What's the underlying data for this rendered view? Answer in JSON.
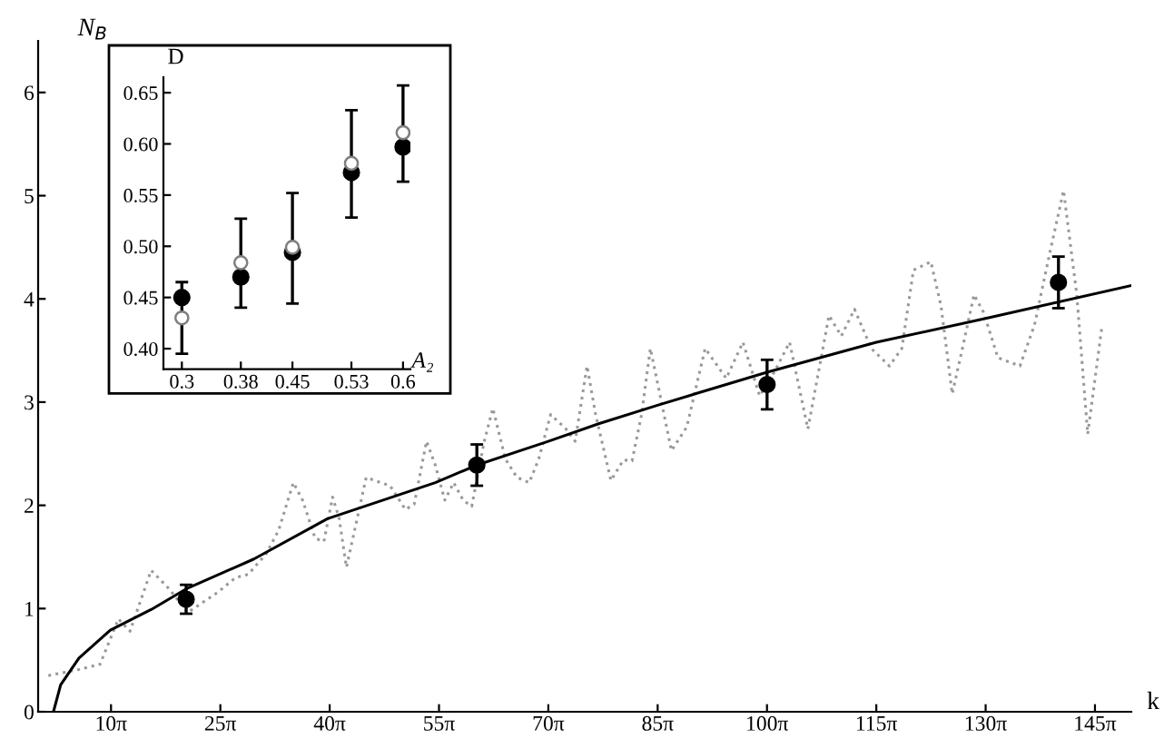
{
  "chart_data": [
    {
      "type": "line",
      "xlabel": "k",
      "ylabel": "N$_{B}$",
      "xlim": [
        0,
        471.2
      ],
      "ylim": [
        0,
        6.5
      ],
      "xticks": [
        {
          "value": 31.416,
          "label": "10π"
        },
        {
          "value": 78.54,
          "label": "25π"
        },
        {
          "value": 125.664,
          "label": "40π"
        },
        {
          "value": 172.788,
          "label": "55π"
        },
        {
          "value": 219.911,
          "label": "70π"
        },
        {
          "value": 267.035,
          "label": "85π"
        },
        {
          "value": 314.159,
          "label": "100π"
        },
        {
          "value": 361.283,
          "label": "115π"
        },
        {
          "value": 408.407,
          "label": "130π"
        },
        {
          "value": 455.531,
          "label": "145π"
        }
      ],
      "yticks": [
        0,
        1,
        2,
        3,
        4,
        5,
        6
      ],
      "series": [
        {
          "color": "#999999",
          "line_style": "dotted",
          "x": [
            4.4,
            17.6,
            26.7,
            34.6,
            39.6,
            48.7,
            56.5,
            64.4,
            69.7,
            77.6,
            85.1,
            90.5,
            98.3,
            103.7,
            110.0,
            114.0,
            119.4,
            123.2,
            126.9,
            129.7,
            132.9,
            137.6,
            141.4,
            146.4,
            151.7,
            158.3,
            162.1,
            167.4,
            171.2,
            175.3,
            179.1,
            183.2,
            186.9,
            192.3,
            196.0,
            201.4,
            206.4,
            211.7,
            215.8,
            220.9,
            227.5,
            231.5,
            236.6,
            240.3,
            246.9,
            252.3,
            256.0,
            260.1,
            263.9,
            273.0,
            279.6,
            287.5,
            296.6,
            303.8,
            311.0,
            317.3,
            323.9,
            331.8,
            340.9,
            346.2,
            351.9,
            359.1,
            366.9,
            372.3,
            377.3,
            384.8,
            389.2,
            394.0,
            398.4,
            403.4,
            407.5,
            413.7,
            423.2,
            429.5,
            436.1,
            442.0,
            447.7,
            452.4,
            458.4
          ],
          "values": [
            0.35,
            0.41,
            0.46,
            0.9,
            0.78,
            1.37,
            1.19,
            0.96,
            1.04,
            1.16,
            1.3,
            1.33,
            1.53,
            1.76,
            2.22,
            2.05,
            1.68,
            1.65,
            2.08,
            1.88,
            1.4,
            1.88,
            2.27,
            2.23,
            2.19,
            1.96,
            2.01,
            2.62,
            2.39,
            2.05,
            2.22,
            2.05,
            1.99,
            2.62,
            2.94,
            2.45,
            2.27,
            2.22,
            2.45,
            2.88,
            2.74,
            2.62,
            3.35,
            2.88,
            2.24,
            2.44,
            2.43,
            2.88,
            3.52,
            2.53,
            2.76,
            3.52,
            3.23,
            3.58,
            3.06,
            3.29,
            3.58,
            2.74,
            3.84,
            3.64,
            3.9,
            3.52,
            3.35,
            3.52,
            4.28,
            4.36,
            3.93,
            3.08,
            3.52,
            4.04,
            3.87,
            3.43,
            3.35,
            3.75,
            4.45,
            5.05,
            4.04,
            2.69,
            3.71
          ]
        },
        {
          "color": "#000000",
          "line_style": "solid",
          "x": [
            6.6,
            9.7,
            17.6,
            31.1,
            48.7,
            63.8,
            93.0,
            124.7,
            171.2,
            189.1,
            219.9,
            241.6,
            267.0,
            314.2,
            361.3,
            408.4,
            471.2
          ],
          "values": [
            0,
            0.26,
            0.52,
            0.79,
            0.99,
            1.19,
            1.48,
            1.87,
            2.22,
            2.39,
            2.62,
            2.79,
            2.97,
            3.29,
            3.58,
            3.81,
            4.13
          ]
        },
        {
          "type": "scatter",
          "color": "#000000",
          "marker": "circle",
          "x": [
            63.8,
            189.1,
            314.2,
            439.8
          ],
          "values": [
            1.09,
            2.39,
            3.17,
            4.16
          ],
          "errors": [
            0.14,
            0.2,
            0.24,
            0.25
          ]
        }
      ]
    },
    {
      "type": "scatter",
      "xlabel": "A₂",
      "ylabel": "D",
      "xlim": [
        0.275,
        0.61
      ],
      "ylim": [
        0.38,
        0.665
      ],
      "xticks": [
        0.3,
        0.38,
        0.45,
        0.53,
        0.6
      ],
      "yticks": [
        {
          "value": 0.4,
          "label": "0.40"
        },
        {
          "value": 0.45,
          "label": "0.45"
        },
        {
          "value": 0.5,
          "label": "0.50"
        },
        {
          "value": 0.55,
          "label": "0.55"
        },
        {
          "value": 0.6,
          "label": "0.60"
        },
        {
          "value": 0.65,
          "label": "0.65"
        }
      ],
      "series": [
        {
          "color": "#000000",
          "marker": "circle",
          "x": [
            0.3,
            0.38,
            0.45,
            0.53,
            0.6
          ],
          "values": [
            0.45,
            0.47,
            0.494,
            0.572,
            0.597
          ],
          "errors": [
            [
              0.395,
              0.465
            ],
            [
              0.44,
              0.527
            ],
            [
              0.444,
              0.552
            ],
            [
              0.528,
              0.633
            ],
            [
              0.563,
              0.657
            ]
          ]
        },
        {
          "color": "#7f7f7f",
          "marker": "circle",
          "x": [
            0.3,
            0.38,
            0.45,
            0.53,
            0.6
          ],
          "values": [
            0.43,
            0.484,
            0.499,
            0.581,
            0.611
          ]
        }
      ]
    }
  ]
}
